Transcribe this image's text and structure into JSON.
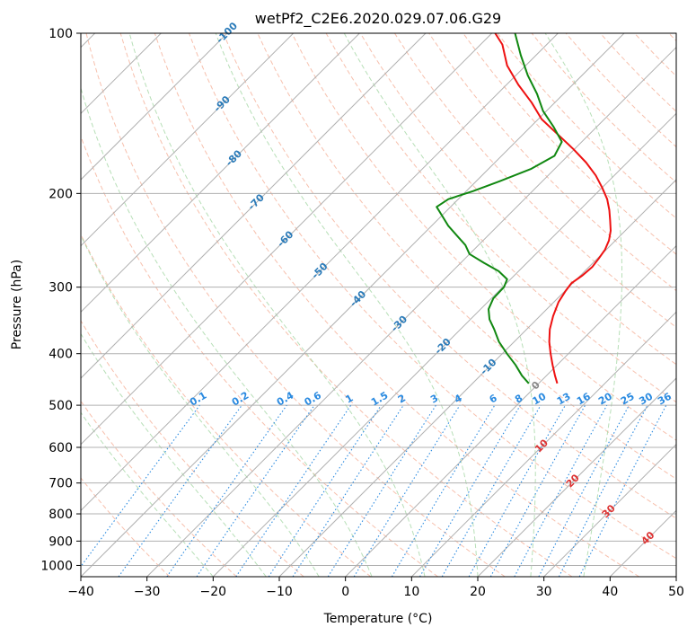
{
  "chart_data": {
    "type": "line",
    "title": "wetPf2_C2E6.2020.029.07.06.G29",
    "xlabel": "Temperature (°C)",
    "ylabel": "Pressure (hPa)",
    "xlim": [
      -40,
      50
    ],
    "ylim": [
      1050,
      100
    ],
    "y_scale": "log",
    "x_ticks": [
      -40,
      -30,
      -20,
      -10,
      0,
      10,
      20,
      30,
      40,
      50
    ],
    "y_ticks": [
      100,
      200,
      300,
      400,
      500,
      600,
      700,
      800,
      900,
      1000
    ],
    "x_tick_labels": [
      "−40",
      "−30",
      "−20",
      "−10",
      "0",
      "10",
      "20",
      "30",
      "40",
      "50"
    ],
    "y_tick_labels": [
      "100",
      "200",
      "300",
      "400",
      "500",
      "600",
      "700",
      "800",
      "900",
      "1000"
    ],
    "isotherm_labels": [
      "-100",
      "-90",
      "-80",
      "-70",
      "-60",
      "-50",
      "-40",
      "-30",
      "-20",
      "-10",
      "0",
      "10",
      "20",
      "30",
      "40"
    ],
    "mixing_ratio_labels": [
      "0.1",
      "0.2",
      "0.4",
      "0.6",
      "1",
      "1.5",
      "2",
      "3",
      "4",
      "6",
      "8",
      "10",
      "13",
      "16",
      "20",
      "25",
      "30",
      "36"
    ],
    "colors": {
      "temperature": "#ee1111",
      "dewpoint": "#118811",
      "isotherm_label": "#2b7bb9",
      "mixing_ratio": "#2a8ae0",
      "warm_label": "#dd3333",
      "zero_label": "#888888",
      "dry_adiabat": "#f4a58a",
      "moist_adiabat": "#9fd49f",
      "grid": "#b0b0b0"
    },
    "series": [
      {
        "key": "temperature",
        "pressure": [
          455,
          440,
          420,
          400,
          380,
          360,
          340,
          320,
          305,
          295,
          285,
          275,
          265,
          255,
          245,
          235,
          225,
          215,
          205,
          195,
          185,
          175,
          165,
          155,
          145,
          135,
          125,
          115,
          105,
          100
        ],
        "values": [
          2.8,
          1.3,
          -0.7,
          -2.7,
          -4.7,
          -6.5,
          -8.0,
          -9.3,
          -9.9,
          -10.2,
          -9.7,
          -9.5,
          -9.8,
          -10.2,
          -11.0,
          -12.2,
          -13.8,
          -15.5,
          -17.5,
          -20.0,
          -22.8,
          -26.2,
          -30.2,
          -34.7,
          -39.5,
          -43.5,
          -48.2,
          -52.8,
          -56.7,
          -59.5
        ]
      },
      {
        "key": "dewpoint",
        "pressure": [
          455,
          440,
          420,
          400,
          380,
          360,
          345,
          330,
          315,
          300,
          290,
          280,
          270,
          260,
          250,
          240,
          230,
          220,
          212,
          205,
          198,
          190,
          180,
          170,
          160,
          150,
          140,
          130,
          120,
          110,
          100
        ],
        "values": [
          -1.5,
          -3.7,
          -6.3,
          -9.3,
          -12.3,
          -14.9,
          -17.1,
          -18.8,
          -19.7,
          -19.8,
          -20.5,
          -23.0,
          -26.5,
          -30.0,
          -32.0,
          -34.7,
          -37.5,
          -40.0,
          -42.1,
          -41.5,
          -39.0,
          -36.5,
          -33.6,
          -32.0,
          -33.0,
          -36.5,
          -40.5,
          -44.0,
          -48.2,
          -52.3,
          -56.5
        ]
      }
    ],
    "grid": true
  }
}
